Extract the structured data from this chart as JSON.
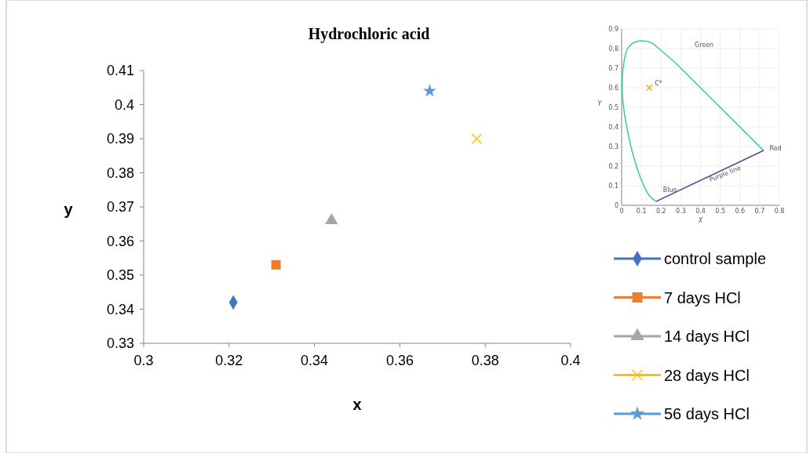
{
  "chart_data": [
    {
      "type": "scatter",
      "title": "Hydrochloric acid",
      "xlabel": "x",
      "ylabel": "y",
      "xlim": [
        0.3,
        0.4
      ],
      "xticks": [
        0.3,
        0.32,
        0.34,
        0.36,
        0.38,
        0.4
      ],
      "ylim": [
        0.33,
        0.41
      ],
      "yticks": [
        0.33,
        0.34,
        0.35,
        0.36,
        0.37,
        0.38,
        0.39,
        0.4,
        0.41
      ],
      "grid": false,
      "legend": "right",
      "series": [
        {
          "name": "control sample",
          "color": "#4472c4",
          "marker": "diamond",
          "x": [
            0.321
          ],
          "values": [
            0.342
          ]
        },
        {
          "name": "7 days HCl",
          "color": "#ed7d31",
          "marker": "square",
          "x": [
            0.331
          ],
          "values": [
            0.353
          ]
        },
        {
          "name": "14 days HCl",
          "color": "#a5a5a5",
          "marker": "triangle",
          "x": [
            0.344
          ],
          "values": [
            0.366
          ]
        },
        {
          "name": "28 days HCl",
          "color": "#ffc000",
          "marker": "cross",
          "x": [
            0.378
          ],
          "values": [
            0.39
          ]
        },
        {
          "name": "56 days HCl",
          "color": "#5b9bd5",
          "marker": "star",
          "x": [
            0.367
          ],
          "values": [
            0.404
          ]
        }
      ]
    },
    {
      "type": "line",
      "xlabel": "X",
      "ylabel": "Y",
      "xlim": [
        0,
        0.8
      ],
      "xticks": [
        0,
        0.1,
        0.2,
        0.3,
        0.4,
        0.5,
        0.6,
        0.7,
        0.8
      ],
      "ylim": [
        0,
        0.9
      ],
      "yticks": [
        0,
        0.1,
        0.2,
        0.3,
        0.4,
        0.5,
        0.6,
        0.7,
        0.8,
        0.9
      ],
      "grid": true,
      "legend": false,
      "series": [
        {
          "color": "#3cc8a0",
          "marker": "none",
          "x": [
            0.72,
            0.65,
            0.55,
            0.45,
            0.35,
            0.28,
            0.2,
            0.15,
            0.1,
            0.06,
            0.03,
            0.01,
            0.003,
            0.01,
            0.03,
            0.06,
            0.1,
            0.14,
            0.175
          ],
          "values": [
            0.28,
            0.35,
            0.45,
            0.55,
            0.65,
            0.72,
            0.79,
            0.83,
            0.84,
            0.83,
            0.8,
            0.72,
            0.6,
            0.5,
            0.38,
            0.25,
            0.13,
            0.05,
            0.02
          ]
        },
        {
          "color": "#6a3d9a",
          "marker": "none",
          "x": [
            0.175,
            0.72
          ],
          "values": [
            0.02,
            0.28
          ]
        },
        {
          "type": "scatter",
          "color": "#f5a623",
          "marker": "cross",
          "x": [
            0.14
          ],
          "values": [
            0.6
          ]
        }
      ],
      "annotations": [
        "Green",
        "Red",
        "Blue",
        "Purple line",
        {
          "text": "C*",
          "x": 0.14,
          "y": 0.6
        }
      ]
    }
  ]
}
